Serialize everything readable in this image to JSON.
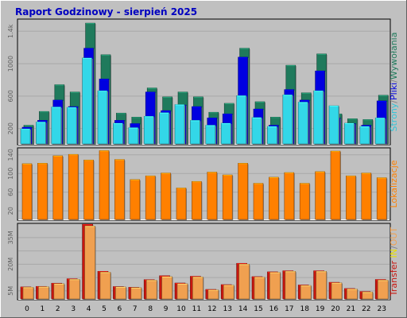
{
  "chart_data": [
    {
      "type": "bar",
      "title": "Raport Godzinowy -   sierpień 2025",
      "ylabel": "Strony/Pliki/Wywołania",
      "ylabel_parts": [
        "Strony",
        "/",
        "Pliki",
        "/",
        "Wywołania"
      ],
      "ylim": [
        0,
        1550
      ],
      "yticks": [
        200,
        600,
        1000,
        1400
      ],
      "ytick_labels": [
        "200",
        "600",
        "1000",
        "1.4k"
      ],
      "categories": [
        "0",
        "1",
        "2",
        "3",
        "4",
        "5",
        "6",
        "7",
        "8",
        "9",
        "10",
        "11",
        "12",
        "13",
        "14",
        "15",
        "16",
        "17",
        "18",
        "19",
        "20",
        "21",
        "22",
        "23"
      ],
      "series": [
        {
          "name": "Wywołania",
          "values": [
            240,
            410,
            740,
            650,
            1500,
            1110,
            390,
            340,
            700,
            590,
            650,
            590,
            400,
            510,
            1190,
            530,
            340,
            980,
            640,
            1120,
            380,
            320,
            310,
            610
          ]
        },
        {
          "name": "Pliki",
          "values": [
            215,
            300,
            550,
            470,
            1190,
            810,
            300,
            260,
            650,
            420,
            490,
            470,
            330,
            380,
            1080,
            440,
            240,
            680,
            550,
            910,
            330,
            260,
            240,
            540
          ]
        },
        {
          "name": "Strony",
          "values": [
            195,
            280,
            465,
            460,
            1070,
            665,
            265,
            210,
            350,
            395,
            495,
            300,
            240,
            265,
            605,
            335,
            225,
            615,
            525,
            665,
            480,
            265,
            225,
            330
          ]
        }
      ],
      "colors": {
        "Wywołania": "#1f7a5c",
        "Pliki": "#0000e0",
        "Strony": "#33d7e8"
      }
    },
    {
      "type": "bar",
      "ylabel": "Lokalizacje",
      "ylim": [
        0,
        155
      ],
      "yticks": [
        20,
        60,
        100,
        140
      ],
      "ytick_labels": [
        "20",
        "60",
        "100",
        "140"
      ],
      "categories": [
        "0",
        "1",
        "2",
        "3",
        "4",
        "5",
        "6",
        "7",
        "8",
        "9",
        "10",
        "11",
        "12",
        "13",
        "14",
        "15",
        "16",
        "17",
        "18",
        "19",
        "20",
        "21",
        "22",
        "23"
      ],
      "series": [
        {
          "name": "Lokalizacje",
          "values": [
            121,
            122,
            138,
            141,
            129,
            149,
            130,
            87,
            95,
            101,
            69,
            83,
            103,
            97,
            122,
            79,
            92,
            102,
            79,
            104,
            148,
            95,
            101,
            91
          ]
        }
      ],
      "colors": {
        "Lokalizacje": "#ff8000"
      }
    },
    {
      "type": "bar",
      "ylabel": "Transfer IN/OUT",
      "ylabel_parts": [
        "Transfer",
        " IN",
        "/",
        "OUT"
      ],
      "ylim": [
        0,
        43
      ],
      "yticks": [
        5,
        20,
        35
      ],
      "ytick_labels": [
        "5M",
        "20M",
        "35M"
      ],
      "extra_ticks": [
        12.5,
        27.5
      ],
      "categories": [
        "0",
        "1",
        "2",
        "3",
        "4",
        "5",
        "6",
        "7",
        "8",
        "9",
        "10",
        "11",
        "12",
        "13",
        "14",
        "15",
        "16",
        "17",
        "18",
        "19",
        "20",
        "21",
        "22",
        "23"
      ],
      "series": [
        {
          "name": "IN",
          "values": [
            7.2,
            7.5,
            9.3,
            11.8,
            42.5,
            16.0,
            7.4,
            7.0,
            11.3,
            13.5,
            9.4,
            13.2,
            5.8,
            8.5,
            20.5,
            13.0,
            15.7,
            16.3,
            8.3,
            16.3,
            9.8,
            6.3,
            4.6,
            11.4
          ]
        },
        {
          "name": "OUT",
          "values": [
            7.0,
            7.3,
            9.0,
            11.5,
            41.5,
            15.5,
            7.2,
            6.8,
            11.0,
            13.0,
            9.0,
            12.8,
            5.5,
            8.2,
            20.0,
            12.7,
            15.4,
            16.0,
            8.0,
            16.0,
            9.5,
            6.0,
            4.3,
            11.0
          ]
        }
      ],
      "colors": {
        "IN": "#c8160f",
        "OUT": "#f0a050",
        "Transfer": "#c8160f",
        "slash": "#808080"
      }
    }
  ],
  "colors": {
    "background": "#c0c0c0",
    "panel": "#ffffff",
    "grid": "#b0b0b0",
    "title": "#0000c0",
    "text": "#000000"
  }
}
